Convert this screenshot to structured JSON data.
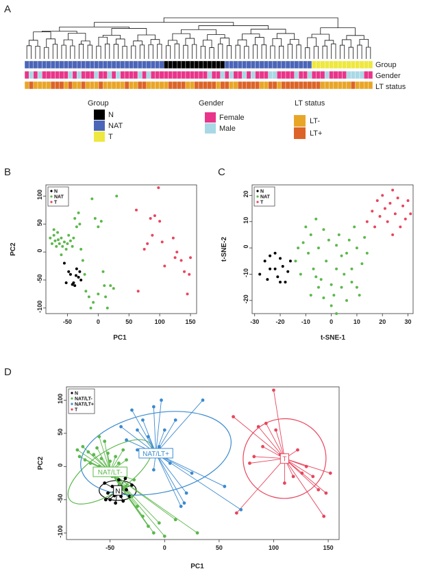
{
  "panels": {
    "a": "A",
    "b": "B",
    "c": "C",
    "d": "D"
  },
  "colors": {
    "N": "#000000",
    "NAT": "#4b66b8",
    "T": "#eee840",
    "Female": "#e8358a",
    "Male": "#a8d8e6",
    "LTneg": "#e8a628",
    "LTpos": "#dc6428",
    "green": "#5cb84c",
    "red": "#e8455c",
    "blue": "#3a8ad0"
  },
  "heatmap": {
    "row_labels": [
      "Group",
      "Gender",
      "LT status"
    ],
    "group_key_title": "Group",
    "group_key": [
      "N",
      "NAT",
      "T"
    ],
    "gender_key_title": "Gender",
    "gender_key": [
      "Female",
      "Male"
    ],
    "lt_key_title": "LT status",
    "lt_key": [
      "LT-",
      "LT+"
    ]
  },
  "chart_data": [
    {
      "type": "scatter",
      "panel": "B",
      "xlabel": "PC1",
      "ylabel": "PC2",
      "xlim": [
        -85,
        160
      ],
      "ylim": [
        -110,
        120
      ],
      "xticks": [
        -50,
        0,
        50,
        100,
        150
      ],
      "yticks": [
        -100,
        -50,
        0,
        50,
        100
      ],
      "legend": [
        "N",
        "NAT",
        "T"
      ],
      "legend_position": "top-left",
      "series": [
        {
          "name": "N",
          "color": "#000000",
          "points": [
            [
              -55,
              -20
            ],
            [
              -48,
              -35
            ],
            [
              -45,
              -40
            ],
            [
              -40,
              -55
            ],
            [
              -35,
              -30
            ],
            [
              -32,
              -45
            ],
            [
              -38,
              -60
            ],
            [
              -30,
              -35
            ],
            [
              -28,
              -50
            ],
            [
              -52,
              -55
            ],
            [
              -42,
              -58
            ],
            [
              -36,
              -42
            ]
          ]
        },
        {
          "name": "NAT",
          "color": "#5cb84c",
          "points": [
            [
              -78,
              25
            ],
            [
              -75,
              15
            ],
            [
              -72,
              30
            ],
            [
              -70,
              20
            ],
            [
              -68,
              10
            ],
            [
              -65,
              22
            ],
            [
              -63,
              15
            ],
            [
              -60,
              25
            ],
            [
              -58,
              10
            ],
            [
              -55,
              18
            ],
            [
              -52,
              5
            ],
            [
              -50,
              15
            ],
            [
              -48,
              30
            ],
            [
              -45,
              20
            ],
            [
              -42,
              10
            ],
            [
              -40,
              25
            ],
            [
              -38,
              60
            ],
            [
              -35,
              45
            ],
            [
              -32,
              70
            ],
            [
              -30,
              50
            ],
            [
              -28,
              5
            ],
            [
              -25,
              -15
            ],
            [
              -22,
              -40
            ],
            [
              -20,
              -70
            ],
            [
              -15,
              -80
            ],
            [
              -12,
              -100
            ],
            [
              -8,
              -90
            ],
            [
              0,
              -75
            ],
            [
              5,
              55
            ],
            [
              -5,
              60
            ],
            [
              0,
              45
            ],
            [
              8,
              -35
            ],
            [
              10,
              -60
            ],
            [
              12,
              -80
            ],
            [
              15,
              -100
            ],
            [
              20,
              -60
            ],
            [
              25,
              -65
            ],
            [
              -10,
              95
            ],
            [
              30,
              100
            ],
            [
              -72,
              40
            ],
            [
              -66,
              35
            ],
            [
              -60,
              -5
            ]
          ]
        },
        {
          "name": "T",
          "color": "#e8455c",
          "points": [
            [
              62,
              75
            ],
            [
              65,
              -70
            ],
            [
              75,
              5
            ],
            [
              80,
              15
            ],
            [
              85,
              60
            ],
            [
              88,
              30
            ],
            [
              92,
              65
            ],
            [
              98,
              115
            ],
            [
              100,
              55
            ],
            [
              104,
              18
            ],
            [
              108,
              -25
            ],
            [
              122,
              25
            ],
            [
              125,
              -10
            ],
            [
              128,
              0
            ],
            [
              135,
              -15
            ],
            [
              140,
              -35
            ],
            [
              145,
              -75
            ],
            [
              148,
              -40
            ],
            [
              150,
              -10
            ]
          ]
        }
      ]
    },
    {
      "type": "scatter",
      "panel": "C",
      "xlabel": "t-SNE-1",
      "ylabel": "t-SNE-2",
      "xlim": [
        -31,
        32
      ],
      "ylim": [
        -25,
        24
      ],
      "xticks": [
        -30,
        -20,
        -10,
        0,
        10,
        20,
        30
      ],
      "yticks": [
        -20,
        -10,
        0,
        10,
        20
      ],
      "legend": [
        "N",
        "NAT",
        "T"
      ],
      "legend_position": "top-left",
      "series": [
        {
          "name": "N",
          "color": "#000000",
          "points": [
            [
              -28,
              -10
            ],
            [
              -26,
              -5
            ],
            [
              -25,
              -12
            ],
            [
              -24,
              -3
            ],
            [
              -22,
              -8
            ],
            [
              -21,
              -11
            ],
            [
              -20,
              -4
            ],
            [
              -19,
              -7
            ],
            [
              -18,
              -13
            ],
            [
              -17,
              -9
            ],
            [
              -22,
              -2
            ],
            [
              -24,
              -8
            ],
            [
              -20,
              -13
            ],
            [
              -16,
              -5
            ]
          ]
        },
        {
          "name": "NAT",
          "color": "#5cb84c",
          "points": [
            [
              -14,
              -5
            ],
            [
              -12,
              -10
            ],
            [
              -11,
              2
            ],
            [
              -10,
              8
            ],
            [
              -9,
              -2
            ],
            [
              -8,
              5
            ],
            [
              -7,
              -8
            ],
            [
              -6,
              11
            ],
            [
              -5,
              0
            ],
            [
              -4,
              -12
            ],
            [
              -3,
              7
            ],
            [
              -2,
              -5
            ],
            [
              -1,
              3
            ],
            [
              0,
              -14
            ],
            [
              1,
              -18
            ],
            [
              2,
              -8
            ],
            [
              3,
              5
            ],
            [
              4,
              -3
            ],
            [
              5,
              -10
            ],
            [
              6,
              -20
            ],
            [
              7,
              3
            ],
            [
              8,
              -13
            ],
            [
              9,
              8
            ],
            [
              10,
              0
            ],
            [
              11,
              -18
            ],
            [
              12,
              -6
            ],
            [
              13,
              4
            ],
            [
              -5,
              -15
            ],
            [
              -3,
              -19
            ],
            [
              0,
              -22
            ],
            [
              2,
              -25
            ],
            [
              -8,
              -18
            ],
            [
              4,
              -15
            ],
            [
              6,
              -2
            ],
            [
              8,
              -8
            ],
            [
              14,
              -2
            ],
            [
              -13,
              0
            ],
            [
              -6,
              -11
            ],
            [
              2,
              1
            ],
            [
              10,
              -15
            ]
          ]
        },
        {
          "name": "T",
          "color": "#e8455c",
          "points": [
            [
              14,
              10
            ],
            [
              16,
              14
            ],
            [
              17,
              8
            ],
            [
              18,
              18
            ],
            [
              19,
              12
            ],
            [
              20,
              20
            ],
            [
              21,
              15
            ],
            [
              22,
              10
            ],
            [
              23,
              17
            ],
            [
              24,
              5
            ],
            [
              24,
              22
            ],
            [
              25,
              13
            ],
            [
              26,
              19
            ],
            [
              27,
              8
            ],
            [
              28,
              16
            ],
            [
              29,
              11
            ],
            [
              30,
              18
            ],
            [
              31,
              13
            ]
          ]
        }
      ]
    },
    {
      "type": "scatter",
      "panel": "D",
      "xlabel": "PC1",
      "ylabel": "PC2",
      "xlim": [
        -90,
        160
      ],
      "ylim": [
        -110,
        120
      ],
      "xticks": [
        -50,
        0,
        50,
        100,
        150
      ],
      "yticks": [
        -100,
        -50,
        0,
        50,
        100
      ],
      "legend": [
        "N",
        "NAT/LT-",
        "NAT/LT+",
        "T"
      ],
      "legend_position": "top-left",
      "series": [
        {
          "name": "N",
          "color": "#000000",
          "center": [
            -43,
            -36
          ],
          "ellipse": [
            17,
            15,
            0
          ],
          "points": [
            [
              -55,
              -25
            ],
            [
              -52,
              -40
            ],
            [
              -50,
              -50
            ],
            [
              -48,
              -30
            ],
            [
              -45,
              -55
            ],
            [
              -42,
              -20
            ],
            [
              -40,
              -45
            ],
            [
              -38,
              -52
            ],
            [
              -35,
              -35
            ],
            [
              -32,
              -45
            ],
            [
              -30,
              -28
            ],
            [
              -36,
              -18
            ],
            [
              -54,
              -50
            ],
            [
              -46,
              -44
            ]
          ]
        },
        {
          "name": "NAT/LT-",
          "color": "#5cb84c",
          "center": [
            -50,
            -8
          ],
          "ellipse": [
            45,
            30,
            -0.6
          ],
          "points": [
            [
              -80,
              25
            ],
            [
              -78,
              15
            ],
            [
              -75,
              30
            ],
            [
              -73,
              10
            ],
            [
              -70,
              22
            ],
            [
              -68,
              5
            ],
            [
              -65,
              18
            ],
            [
              -62,
              28
            ],
            [
              -60,
              0
            ],
            [
              -58,
              12
            ],
            [
              -55,
              -5
            ],
            [
              -52,
              20
            ],
            [
              -50,
              8
            ],
            [
              -48,
              -15
            ],
            [
              -45,
              15
            ],
            [
              -42,
              5
            ],
            [
              -40,
              -10
            ],
            [
              -38,
              25
            ],
            [
              -35,
              -30
            ],
            [
              -30,
              -45
            ],
            [
              -28,
              -20
            ],
            [
              -25,
              -60
            ],
            [
              -20,
              -75
            ],
            [
              -15,
              -90
            ],
            [
              -10,
              -100
            ],
            [
              -5,
              -85
            ],
            [
              0,
              -105
            ],
            [
              30,
              -100
            ],
            [
              10,
              -80
            ],
            [
              -60,
              45
            ],
            [
              -55,
              38
            ],
            [
              -35,
              10
            ]
          ]
        },
        {
          "name": "NAT/LT+",
          "color": "#3a8ad0",
          "center": [
            -8,
            20
          ],
          "ellipse": [
            70,
            60,
            -0.2
          ],
          "points": [
            [
              -40,
              60
            ],
            [
              -35,
              40
            ],
            [
              -30,
              85
            ],
            [
              -25,
              55
            ],
            [
              -20,
              70
            ],
            [
              -15,
              45
            ],
            [
              -10,
              90
            ],
            [
              -5,
              30
            ],
            [
              -3,
              100
            ],
            [
              0,
              55
            ],
            [
              5,
              25
            ],
            [
              10,
              70
            ],
            [
              -10,
              -5
            ],
            [
              15,
              -60
            ],
            [
              20,
              -40
            ],
            [
              25,
              -10
            ],
            [
              35,
              100
            ],
            [
              55,
              -30
            ],
            [
              70,
              -65
            ],
            [
              -25,
              25
            ],
            [
              5,
              5
            ],
            [
              18,
              -55
            ]
          ]
        },
        {
          "name": "T",
          "color": "#e8455c",
          "center": [
            110,
            12
          ],
          "ellipse": [
            38,
            60,
            -0.1
          ],
          "points": [
            [
              63,
              75
            ],
            [
              66,
              -70
            ],
            [
              78,
              5
            ],
            [
              82,
              15
            ],
            [
              86,
              60
            ],
            [
              90,
              30
            ],
            [
              93,
              65
            ],
            [
              100,
              115
            ],
            [
              102,
              55
            ],
            [
              106,
              18
            ],
            [
              110,
              -25
            ],
            [
              122,
              25
            ],
            [
              126,
              -10
            ],
            [
              130,
              0
            ],
            [
              136,
              -15
            ],
            [
              141,
              -35
            ],
            [
              146,
              -75
            ],
            [
              148,
              -40
            ],
            [
              152,
              -10
            ],
            [
              118,
              -15
            ]
          ]
        }
      ],
      "centroid_labels": [
        "N",
        "NAT/LT-",
        "NAT/LT+",
        "T"
      ]
    }
  ]
}
